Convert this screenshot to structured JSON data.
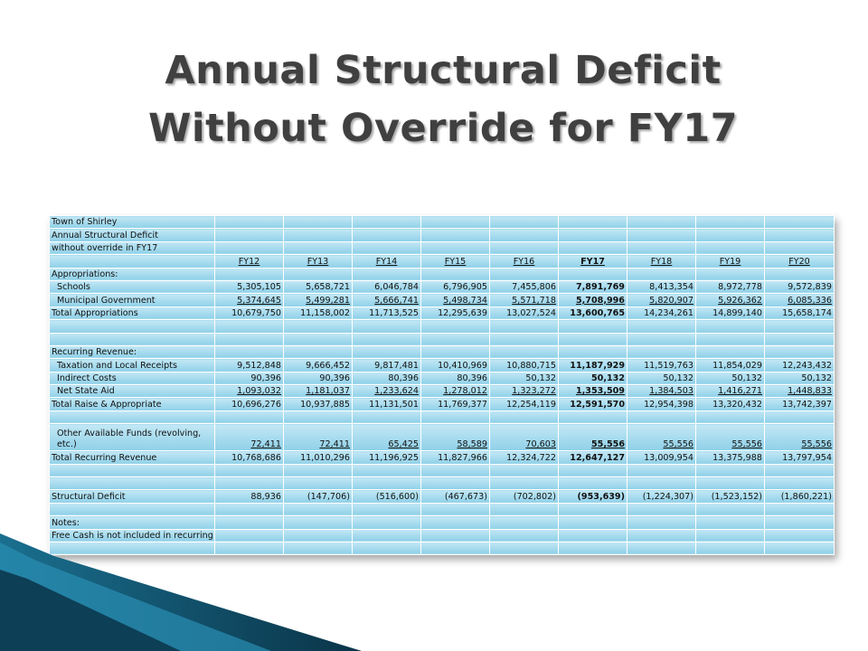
{
  "slide": {
    "title_line1": "Annual Structural Deficit",
    "title_line2": "Without Override for FY17"
  },
  "table": {
    "rows": [
      {
        "label": "Town of Shirley",
        "cells": [
          "",
          "",
          "",
          "",
          "",
          "",
          "",
          "",
          ""
        ]
      },
      {
        "label": "Annual Structural Deficit",
        "cells": [
          "",
          "",
          "",
          "",
          "",
          "",
          "",
          "",
          ""
        ]
      },
      {
        "label": "without override in FY17",
        "cells": [
          "",
          "",
          "",
          "",
          "",
          "",
          "",
          "",
          ""
        ]
      },
      {
        "label": "",
        "cells": [
          "FY12",
          "FY13",
          "FY14",
          "FY15",
          "FY16",
          "FY17",
          "FY18",
          "FY19",
          "FY20"
        ]
      },
      {
        "label": "Appropriations:",
        "cells": [
          "",
          "",
          "",
          "",
          "",
          "",
          "",
          "",
          ""
        ]
      },
      {
        "label": "Schools",
        "cells": [
          "5,305,105",
          "5,658,721",
          "6,046,784",
          "6,796,905",
          "7,455,806",
          "7,891,769",
          "8,413,354",
          "8,972,778",
          "9,572,839"
        ]
      },
      {
        "label": "Municipal Government",
        "cells": [
          "5,374,645",
          "5,499,281",
          "5,666,741",
          "5,498,734",
          "5,571,718",
          "5,708,996",
          "5,820,907",
          "5,926,362",
          "6,085,336"
        ]
      },
      {
        "label": "Total Appropriations",
        "cells": [
          "10,679,750",
          "11,158,002",
          "11,713,525",
          "12,295,639",
          "13,027,524",
          "13,600,765",
          "14,234,261",
          "14,899,140",
          "15,658,174"
        ]
      },
      {
        "label": "",
        "cells": [
          "",
          "",
          "",
          "",
          "",
          "",
          "",
          "",
          ""
        ]
      },
      {
        "label": "",
        "cells": [
          "",
          "",
          "",
          "",
          "",
          "",
          "",
          "",
          ""
        ]
      },
      {
        "label": "Recurring Revenue:",
        "cells": [
          "",
          "",
          "",
          "",
          "",
          "",
          "",
          "",
          ""
        ]
      },
      {
        "label": "Taxation and Local Receipts",
        "cells": [
          "9,512,848",
          "9,666,452",
          "9,817,481",
          "10,410,969",
          "10,880,715",
          "11,187,929",
          "11,519,763",
          "11,854,029",
          "12,243,432"
        ]
      },
      {
        "label": "Indirect Costs",
        "cells": [
          "90,396",
          "90,396",
          "80,396",
          "80,396",
          "50,132",
          "50,132",
          "50,132",
          "50,132",
          "50,132"
        ]
      },
      {
        "label": "Net State Aid",
        "cells": [
          "1,093,032",
          "1,181,037",
          "1,233,624",
          "1,278,012",
          "1,323,272",
          "1,353,509",
          "1,384,503",
          "1,416,271",
          "1,448,833"
        ]
      },
      {
        "label": "Total Raise & Appropriate",
        "cells": [
          "10,696,276",
          "10,937,885",
          "11,131,501",
          "11,769,377",
          "12,254,119",
          "12,591,570",
          "12,954,398",
          "13,320,432",
          "13,742,397"
        ]
      },
      {
        "label": "",
        "cells": [
          "",
          "",
          "",
          "",
          "",
          "",
          "",
          "",
          ""
        ]
      },
      {
        "label": "Other Available Funds (revolving, etc.)",
        "cells": [
          "72,411",
          "72,411",
          "65,425",
          "58,589",
          "70,603",
          "55,556",
          "55,556",
          "55,556",
          "55,556"
        ]
      },
      {
        "label": "Total Recurring Revenue",
        "cells": [
          "10,768,686",
          "11,010,296",
          "11,196,925",
          "11,827,966",
          "12,324,722",
          "12,647,127",
          "13,009,954",
          "13,375,988",
          "13,797,954"
        ]
      },
      {
        "label": "",
        "cells": [
          "",
          "",
          "",
          "",
          "",
          "",
          "",
          "",
          ""
        ]
      },
      {
        "label": "",
        "cells": [
          "",
          "",
          "",
          "",
          "",
          "",
          "",
          "",
          ""
        ]
      },
      {
        "label": "Structural Deficit",
        "cells": [
          "88,936",
          "(147,706)",
          "(516,600)",
          "(467,673)",
          "(702,802)",
          "(953,639)",
          "(1,224,307)",
          "(1,523,152)",
          "(1,860,221)"
        ]
      },
      {
        "label": "",
        "cells": [
          "",
          "",
          "",
          "",
          "",
          "",
          "",
          "",
          ""
        ]
      },
      {
        "label": "Notes:",
        "cells": [
          "",
          "",
          "",
          "",
          "",
          "",
          "",
          "",
          ""
        ]
      },
      {
        "label": "Free Cash is not included in recurring revenue",
        "cells": [
          "",
          "",
          "",
          "",
          "",
          "",
          "",
          "",
          ""
        ]
      },
      {
        "label": "",
        "cells": [
          "",
          "",
          "",
          "",
          "",
          "",
          "",
          "",
          ""
        ]
      }
    ]
  }
}
